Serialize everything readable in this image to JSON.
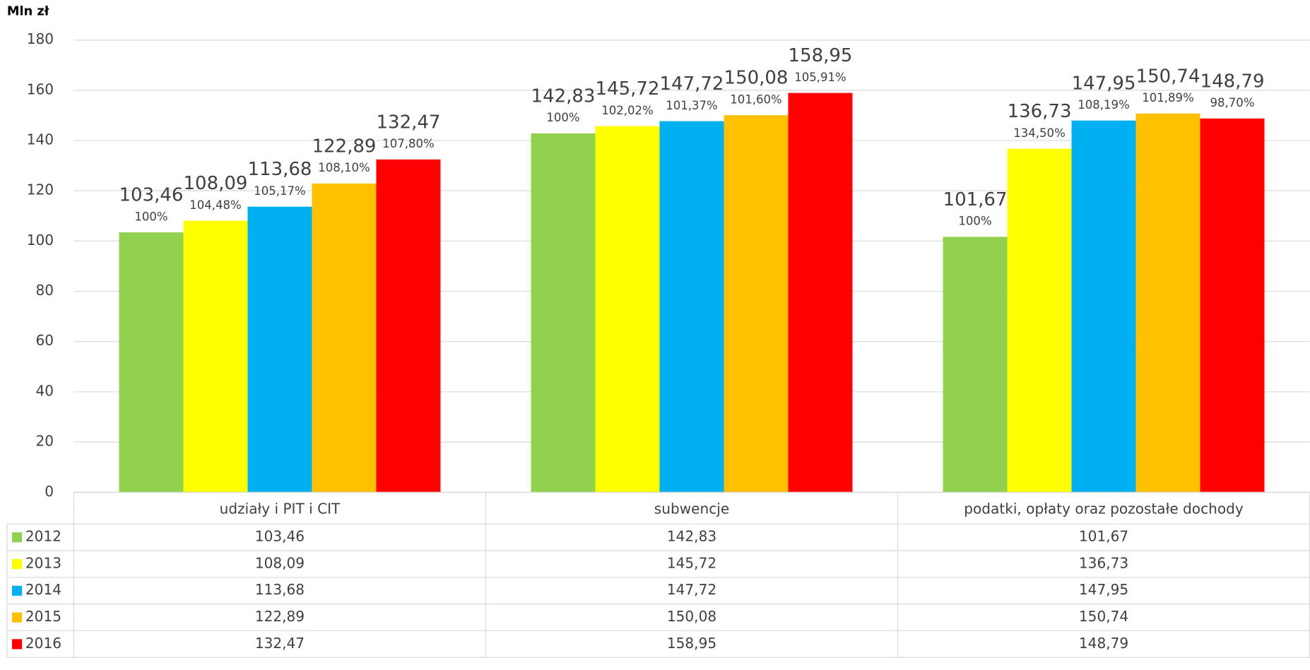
{
  "chart_data": {
    "type": "bar",
    "y_label": "Mln zł",
    "categories": [
      "udziały i PIT i CIT",
      "subwencje",
      "podatki, opłaty oraz pozostałe dochody"
    ],
    "series": [
      {
        "name": "2012",
        "color": "#92d050",
        "values": [
          103.46,
          142.83,
          101.67
        ],
        "value_labels": [
          "103,46",
          "142,83",
          "101,67"
        ],
        "pct_labels": [
          "100%",
          "100%",
          "100%"
        ]
      },
      {
        "name": "2013",
        "color": "#ffff00",
        "values": [
          108.09,
          145.72,
          136.73
        ],
        "value_labels": [
          "108,09",
          "145,72",
          "136,73"
        ],
        "pct_labels": [
          "104,48%",
          "102,02%",
          "134,50%"
        ]
      },
      {
        "name": "2014",
        "color": "#00b0f0",
        "values": [
          113.68,
          147.72,
          147.95
        ],
        "value_labels": [
          "113,68",
          "147,72",
          "147,95"
        ],
        "pct_labels": [
          "105,17%",
          "101,37%",
          "108,19%"
        ]
      },
      {
        "name": "2015",
        "color": "#ffc000",
        "values": [
          122.89,
          150.08,
          150.74
        ],
        "value_labels": [
          "122,89",
          "150,08",
          "150,74"
        ],
        "pct_labels": [
          "108,10%",
          "101,60%",
          "101,89%"
        ]
      },
      {
        "name": "2016",
        "color": "#ff0000",
        "values": [
          132.47,
          158.95,
          148.79
        ],
        "value_labels": [
          "132,47",
          "158,95",
          "148,79"
        ],
        "pct_labels": [
          "107,80%",
          "105,91%",
          "98,70%"
        ]
      }
    ],
    "ylim": [
      0,
      180
    ],
    "yticks": [
      0,
      20,
      40,
      60,
      80,
      100,
      120,
      140,
      160,
      180
    ],
    "grid": true,
    "data_table": true
  }
}
